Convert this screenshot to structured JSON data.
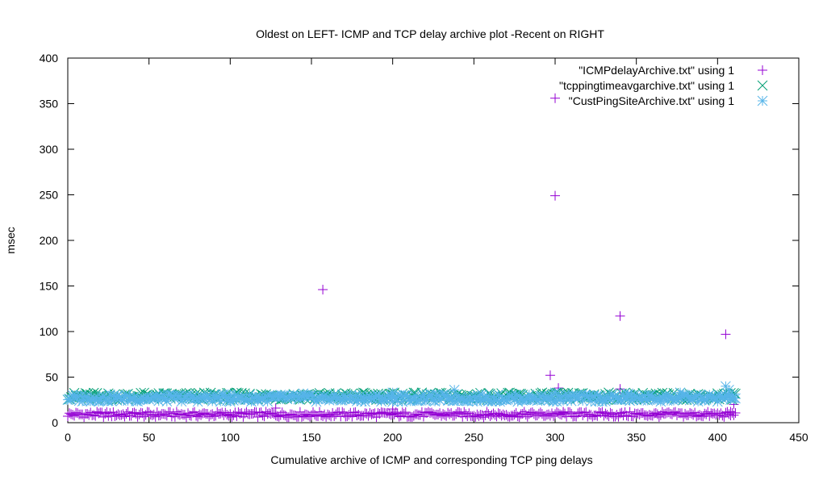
{
  "chart_data": {
    "type": "scatter",
    "title": "Oldest on LEFT- ICMP and TCP delay archive plot -Recent on RIGHT",
    "xlabel": "Cumulative archive of ICMP and corresponding TCP ping delays",
    "ylabel": "msec",
    "xlim": [
      0,
      450
    ],
    "ylim": [
      0,
      400
    ],
    "xticks": [
      0,
      50,
      100,
      150,
      200,
      250,
      300,
      350,
      400,
      450
    ],
    "yticks": [
      0,
      50,
      100,
      150,
      200,
      250,
      300,
      350,
      400
    ],
    "grid": false,
    "legend_position": "top-right",
    "series": [
      {
        "name": "\"ICMPdelayArchive.txt\" using 1",
        "marker": "plus",
        "color": "#9400d3",
        "base_range": [
          0,
          411
        ],
        "base_value": 9,
        "outliers": [
          [
            157,
            146
          ],
          [
            300,
            249
          ],
          [
            300,
            356
          ],
          [
            297,
            52
          ],
          [
            340,
            117
          ],
          [
            405,
            97
          ],
          [
            340,
            37
          ],
          [
            302,
            38
          ],
          [
            305,
            12
          ],
          [
            200,
            15
          ],
          [
            128,
            16
          ],
          [
            408,
            12
          ],
          [
            410,
            20
          ]
        ]
      },
      {
        "name": "\"tcppingtimeavgarchive.txt\" using 1",
        "marker": "x",
        "color": "#009e73",
        "base_range": [
          0,
          411
        ],
        "base_value": 29,
        "outliers": []
      },
      {
        "name": "\"CustPingSiteArchive.txt\" using 1",
        "marker": "star",
        "color": "#56b4e9",
        "base_range": [
          0,
          411
        ],
        "base_value": 27,
        "outliers": [
          [
            238,
            36
          ],
          [
            300,
            33
          ],
          [
            345,
            32
          ],
          [
            377,
            33
          ],
          [
            405,
            40
          ],
          [
            407,
            36
          ],
          [
            409,
            30
          ],
          [
            200,
            33
          ],
          [
            145,
            32
          ],
          [
            100,
            31
          ]
        ]
      }
    ]
  }
}
